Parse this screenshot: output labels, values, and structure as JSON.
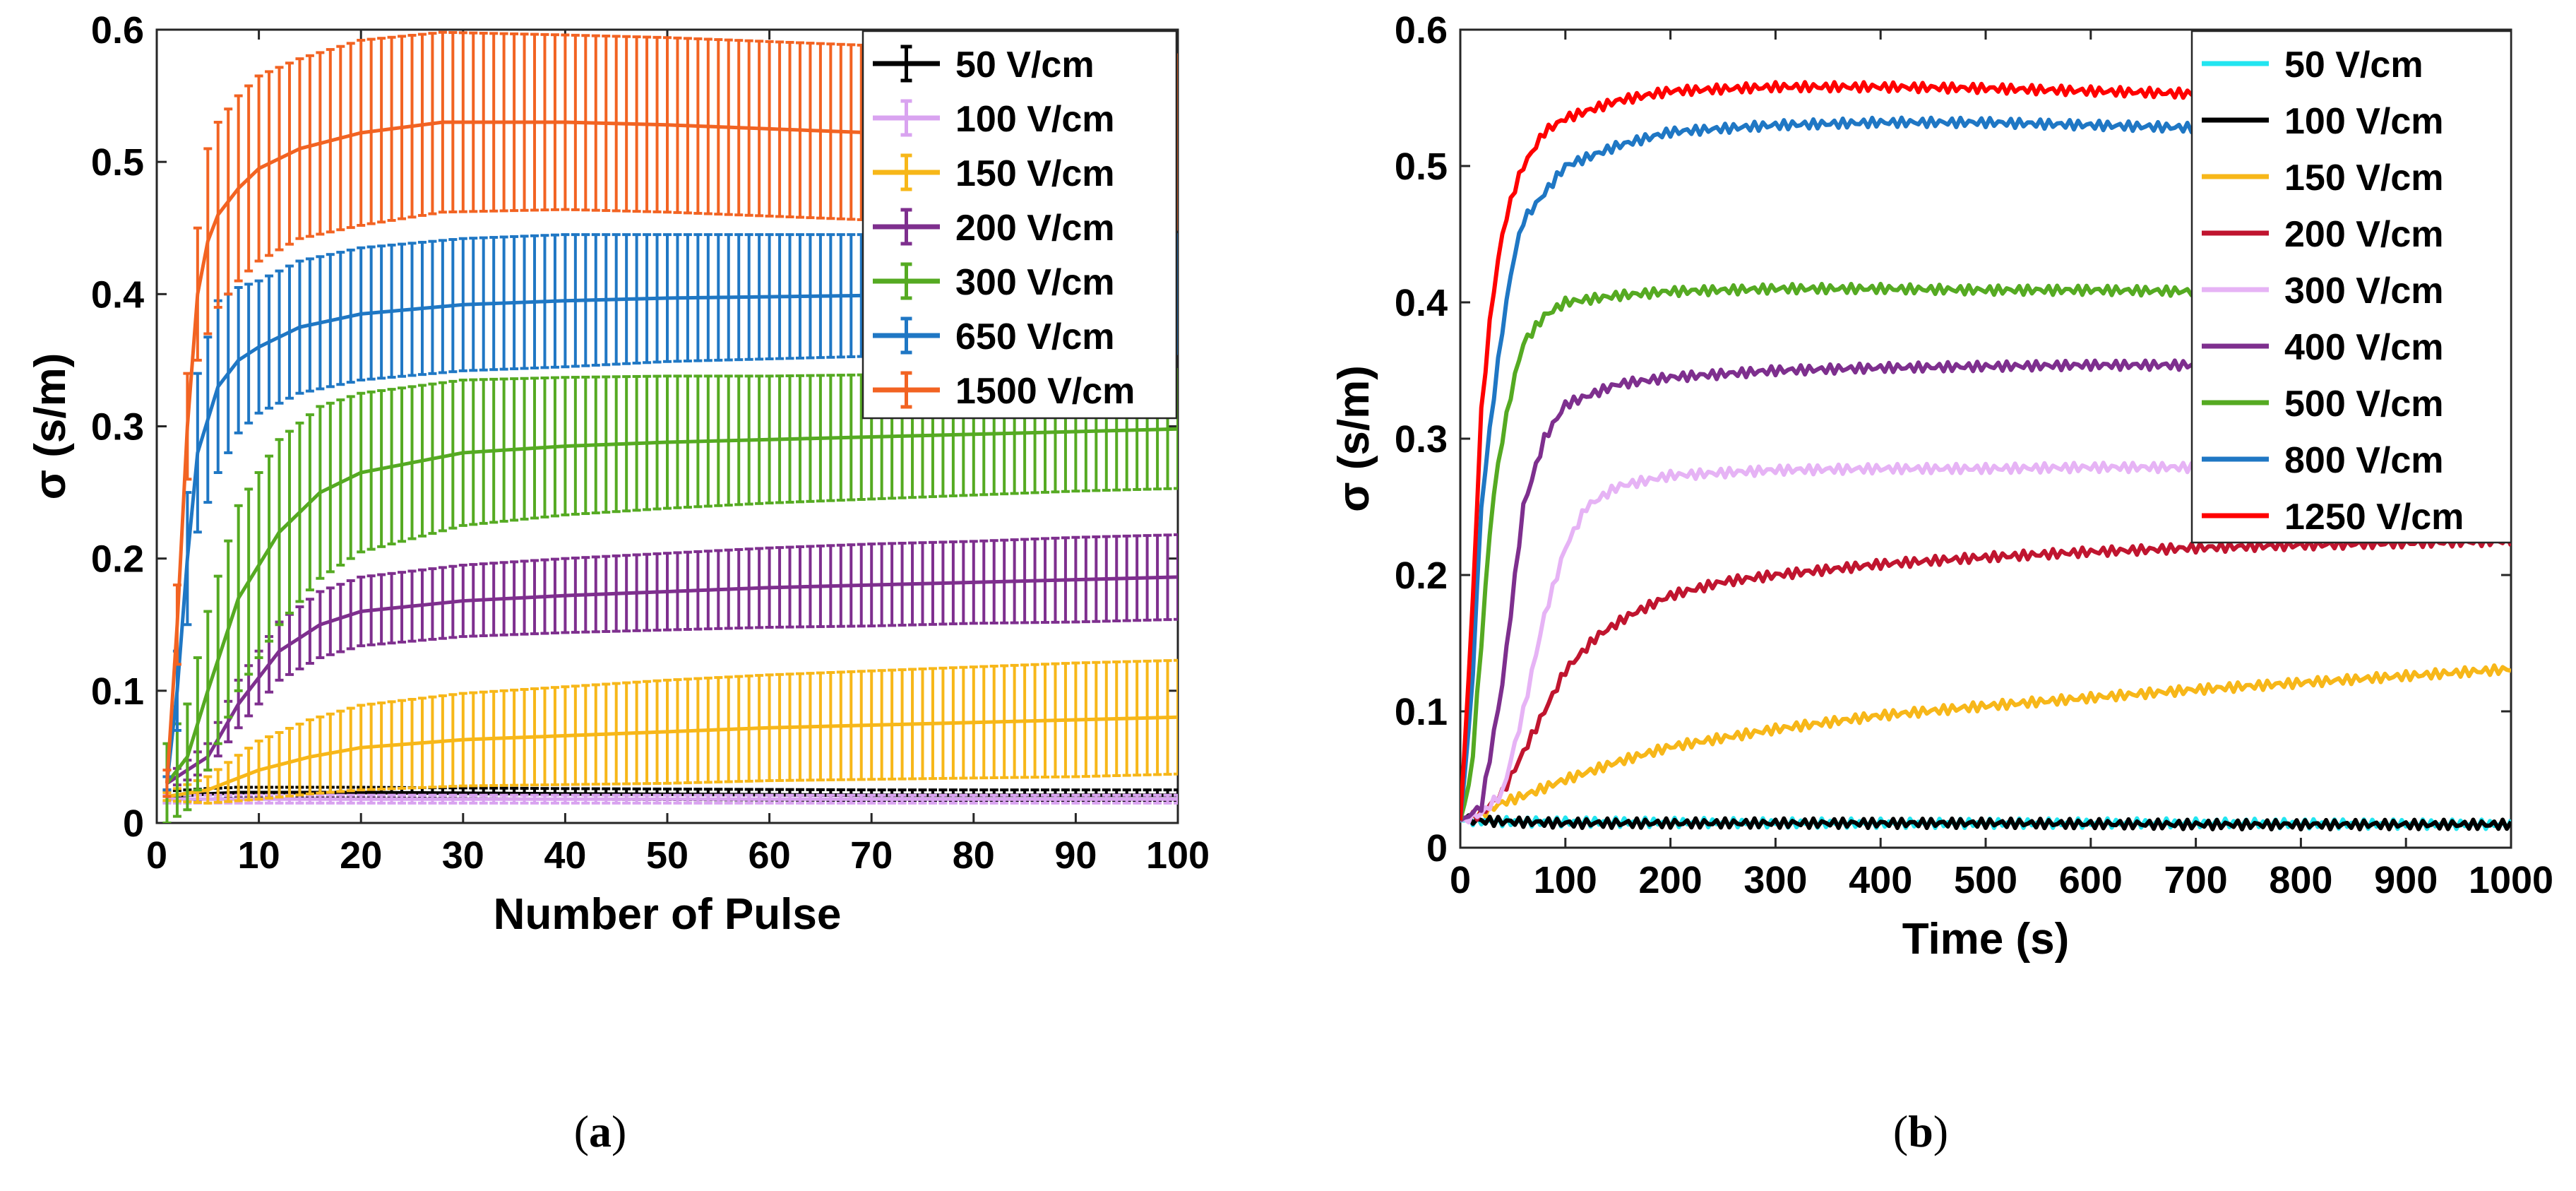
{
  "chart_data": [
    {
      "type": "line",
      "panel": "(a)",
      "panel_letter": "a",
      "xlabel": "Number of Pulse",
      "ylabel": "σ (s/m)",
      "xlim": [
        0,
        100
      ],
      "ylim": [
        0,
        0.6
      ],
      "xticks": [
        0,
        10,
        20,
        30,
        40,
        50,
        60,
        70,
        80,
        90,
        100
      ],
      "yticks": [
        0,
        0.1,
        0.2,
        0.3,
        0.4,
        0.5,
        0.6
      ],
      "ytick_labels": [
        "0",
        "0.1",
        "0.2",
        "0.3",
        "0.4",
        "0.5",
        "0.6"
      ],
      "grid": false,
      "legend_position": "top-right",
      "error_bars": true,
      "series": [
        {
          "name": "50 V/cm",
          "color": "#000000",
          "x": [
            1,
            3,
            5,
            8,
            12,
            20,
            40,
            70,
            100
          ],
          "y": [
            0.02,
            0.021,
            0.022,
            0.023,
            0.023,
            0.023,
            0.022,
            0.021,
            0.021
          ],
          "err": [
            0.004,
            0.004,
            0.004,
            0.004,
            0.004,
            0.004,
            0.004,
            0.004,
            0.004
          ]
        },
        {
          "name": "100 V/cm",
          "color": "#d9a3f0",
          "x": [
            1,
            3,
            5,
            8,
            12,
            20,
            40,
            70,
            100
          ],
          "y": [
            0.018,
            0.018,
            0.018,
            0.018,
            0.018,
            0.018,
            0.018,
            0.018,
            0.018
          ],
          "err": [
            0.003,
            0.003,
            0.003,
            0.003,
            0.003,
            0.003,
            0.003,
            0.003,
            0.003
          ]
        },
        {
          "name": "150 V/cm",
          "color": "#f7b719",
          "x": [
            1,
            5,
            10,
            15,
            20,
            30,
            40,
            50,
            60,
            70,
            80,
            90,
            100
          ],
          "y": [
            0.02,
            0.025,
            0.04,
            0.05,
            0.057,
            0.063,
            0.066,
            0.069,
            0.072,
            0.074,
            0.076,
            0.078,
            0.08
          ],
          "err": [
            0.003,
            0.01,
            0.022,
            0.028,
            0.032,
            0.035,
            0.037,
            0.039,
            0.04,
            0.041,
            0.042,
            0.043,
            0.043
          ]
        },
        {
          "name": "200 V/cm",
          "color": "#7e2f8e",
          "x": [
            1,
            5,
            8,
            12,
            16,
            20,
            30,
            40,
            50,
            60,
            70,
            80,
            90,
            100
          ],
          "y": [
            0.03,
            0.05,
            0.09,
            0.13,
            0.15,
            0.16,
            0.168,
            0.172,
            0.175,
            0.178,
            0.18,
            0.182,
            0.184,
            0.186
          ],
          "err": [
            0.005,
            0.01,
            0.018,
            0.022,
            0.025,
            0.026,
            0.027,
            0.028,
            0.029,
            0.03,
            0.031,
            0.031,
            0.032,
            0.032
          ]
        },
        {
          "name": "300 V/cm",
          "color": "#55aa22",
          "x": [
            1,
            3,
            5,
            8,
            12,
            16,
            20,
            30,
            40,
            50,
            60,
            70,
            80,
            90,
            100
          ],
          "y": [
            0.03,
            0.05,
            0.1,
            0.17,
            0.22,
            0.25,
            0.265,
            0.28,
            0.285,
            0.288,
            0.29,
            0.292,
            0.294,
            0.296,
            0.298
          ],
          "err": [
            0.03,
            0.04,
            0.06,
            0.07,
            0.07,
            0.065,
            0.06,
            0.055,
            0.052,
            0.05,
            0.048,
            0.047,
            0.046,
            0.045,
            0.045
          ]
        },
        {
          "name": "650 V/cm",
          "color": "#1f77c4",
          "x": [
            1,
            2,
            3,
            4,
            6,
            8,
            10,
            14,
            20,
            30,
            40,
            50,
            60,
            70,
            80,
            90,
            100
          ],
          "y": [
            0.03,
            0.1,
            0.2,
            0.28,
            0.33,
            0.35,
            0.36,
            0.375,
            0.385,
            0.392,
            0.395,
            0.397,
            0.398,
            0.399,
            0.4,
            0.4,
            0.4
          ],
          "err": [
            0.005,
            0.03,
            0.05,
            0.06,
            0.065,
            0.055,
            0.05,
            0.05,
            0.05,
            0.05,
            0.05,
            0.048,
            0.047,
            0.046,
            0.045,
            0.045,
            0.045
          ]
        },
        {
          "name": "1500 V/cm",
          "color": "#f26322",
          "x": [
            1,
            2,
            3,
            4,
            5,
            6,
            8,
            10,
            14,
            20,
            28,
            40,
            50,
            60,
            70,
            80,
            90,
            100
          ],
          "y": [
            0.03,
            0.15,
            0.3,
            0.4,
            0.44,
            0.46,
            0.48,
            0.495,
            0.51,
            0.522,
            0.53,
            0.53,
            0.528,
            0.525,
            0.522,
            0.52,
            0.518,
            0.515
          ],
          "err": [
            0.01,
            0.03,
            0.04,
            0.05,
            0.07,
            0.07,
            0.07,
            0.07,
            0.068,
            0.07,
            0.068,
            0.066,
            0.066,
            0.066,
            0.066,
            0.066,
            0.066,
            0.066
          ]
        }
      ]
    },
    {
      "type": "line",
      "panel": "(b)",
      "panel_letter": "b",
      "xlabel": "Time (s)",
      "ylabel": "σ (s/m)",
      "xlim": [
        0,
        1000
      ],
      "ylim": [
        0,
        0.6
      ],
      "xticks": [
        0,
        100,
        200,
        300,
        400,
        500,
        600,
        700,
        800,
        900,
        1000
      ],
      "yticks": [
        0,
        0.1,
        0.2,
        0.3,
        0.4,
        0.5,
        0.6
      ],
      "ytick_labels": [
        "0",
        "0.1",
        "0.2",
        "0.3",
        "0.4",
        "0.5",
        "0.6"
      ],
      "grid": false,
      "legend_position": "top-right",
      "error_bars": false,
      "series": [
        {
          "name": "50 V/cm",
          "color": "#22e5f0",
          "x": [
            0,
            10,
            50,
            100,
            300,
            500,
            700,
            1000
          ],
          "y": [
            0.02,
            0.02,
            0.019,
            0.019,
            0.018,
            0.018,
            0.018,
            0.017
          ]
        },
        {
          "name": "100 V/cm",
          "color": "#000000",
          "x": [
            0,
            10,
            50,
            100,
            300,
            500,
            700,
            1000
          ],
          "y": [
            0.022,
            0.02,
            0.019,
            0.018,
            0.018,
            0.018,
            0.017,
            0.017
          ]
        },
        {
          "name": "150 V/cm",
          "color": "#f7b719",
          "x": [
            0,
            20,
            40,
            60,
            100,
            150,
            200,
            300,
            400,
            500,
            600,
            700,
            800,
            900,
            1000
          ],
          "y": [
            0.02,
            0.025,
            0.033,
            0.038,
            0.05,
            0.063,
            0.074,
            0.087,
            0.097,
            0.104,
            0.11,
            0.116,
            0.121,
            0.126,
            0.131
          ]
        },
        {
          "name": "200 V/cm",
          "color": "#c0152f",
          "x": [
            0,
            20,
            40,
            60,
            80,
            100,
            130,
            160,
            200,
            250,
            300,
            400,
            500,
            600,
            700,
            800,
            1000
          ],
          "y": [
            0.02,
            0.025,
            0.04,
            0.07,
            0.1,
            0.13,
            0.155,
            0.17,
            0.185,
            0.195,
            0.2,
            0.208,
            0.213,
            0.217,
            0.22,
            0.222,
            0.225
          ]
        },
        {
          "name": "300 V/cm",
          "color": "#e6b3f5",
          "x": [
            0,
            20,
            40,
            60,
            80,
            100,
            120,
            150,
            200,
            300,
            400,
            500,
            600,
            700,
            800,
            1000
          ],
          "y": [
            0.02,
            0.025,
            0.04,
            0.1,
            0.17,
            0.22,
            0.25,
            0.265,
            0.273,
            0.277,
            0.278,
            0.278,
            0.279,
            0.279,
            0.279,
            0.279
          ]
        },
        {
          "name": "400 V/cm",
          "color": "#7e2f8e",
          "x": [
            0,
            20,
            40,
            60,
            80,
            100,
            150,
            200,
            300,
            400,
            500,
            600,
            700,
            800,
            1000
          ],
          "y": [
            0.02,
            0.03,
            0.12,
            0.25,
            0.3,
            0.325,
            0.34,
            0.345,
            0.35,
            0.352,
            0.353,
            0.354,
            0.354,
            0.355,
            0.355
          ]
        },
        {
          "name": "500 V/cm",
          "color": "#55aa22",
          "x": [
            0,
            10,
            20,
            30,
            40,
            50,
            60,
            80,
            100,
            150,
            200,
            300,
            400,
            500,
            600,
            700,
            800,
            1000
          ],
          "y": [
            0.02,
            0.05,
            0.15,
            0.25,
            0.3,
            0.34,
            0.37,
            0.39,
            0.4,
            0.405,
            0.408,
            0.41,
            0.41,
            0.409,
            0.409,
            0.408,
            0.408,
            0.408
          ]
        },
        {
          "name": "800 V/cm",
          "color": "#1f77c4",
          "x": [
            0,
            10,
            20,
            30,
            40,
            50,
            60,
            80,
            100,
            150,
            200,
            300,
            400,
            500,
            600,
            700,
            800,
            1000
          ],
          "y": [
            0.02,
            0.1,
            0.25,
            0.32,
            0.38,
            0.43,
            0.46,
            0.48,
            0.5,
            0.515,
            0.525,
            0.53,
            0.532,
            0.532,
            0.53,
            0.528,
            0.527,
            0.526
          ]
        },
        {
          "name": "1250 V/cm",
          "color": "#ff0000",
          "x": [
            0,
            10,
            20,
            30,
            40,
            50,
            60,
            80,
            100,
            150,
            200,
            300,
            400,
            500,
            600,
            700,
            800,
            1000
          ],
          "y": [
            0.02,
            0.15,
            0.32,
            0.4,
            0.45,
            0.48,
            0.5,
            0.525,
            0.535,
            0.548,
            0.555,
            0.558,
            0.558,
            0.557,
            0.555,
            0.553,
            0.551,
            0.549
          ]
        }
      ]
    }
  ]
}
